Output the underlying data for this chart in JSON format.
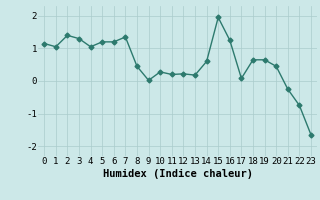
{
  "x": [
    0,
    1,
    2,
    3,
    4,
    5,
    6,
    7,
    8,
    9,
    10,
    11,
    12,
    13,
    14,
    15,
    16,
    17,
    18,
    19,
    20,
    21,
    22,
    23
  ],
  "y": [
    1.15,
    1.05,
    1.4,
    1.3,
    1.05,
    1.2,
    1.2,
    1.35,
    0.45,
    0.02,
    0.28,
    0.2,
    0.22,
    0.18,
    0.6,
    1.95,
    1.25,
    0.08,
    0.65,
    0.65,
    0.45,
    -0.25,
    -0.75,
    -1.65
  ],
  "xlabel": "Humidex (Indice chaleur)",
  "xlim": [
    -0.5,
    23.5
  ],
  "ylim": [
    -2.3,
    2.3
  ],
  "yticks": [
    -2,
    -1,
    0,
    1,
    2
  ],
  "xticks": [
    0,
    1,
    2,
    3,
    4,
    5,
    6,
    7,
    8,
    9,
    10,
    11,
    12,
    13,
    14,
    15,
    16,
    17,
    18,
    19,
    20,
    21,
    22,
    23
  ],
  "line_color": "#2d7a6e",
  "marker": "D",
  "marker_size": 2.5,
  "bg_color": "#cce8e8",
  "grid_color": "#aacccc",
  "xlabel_fontsize": 7.5,
  "tick_fontsize": 6.5
}
